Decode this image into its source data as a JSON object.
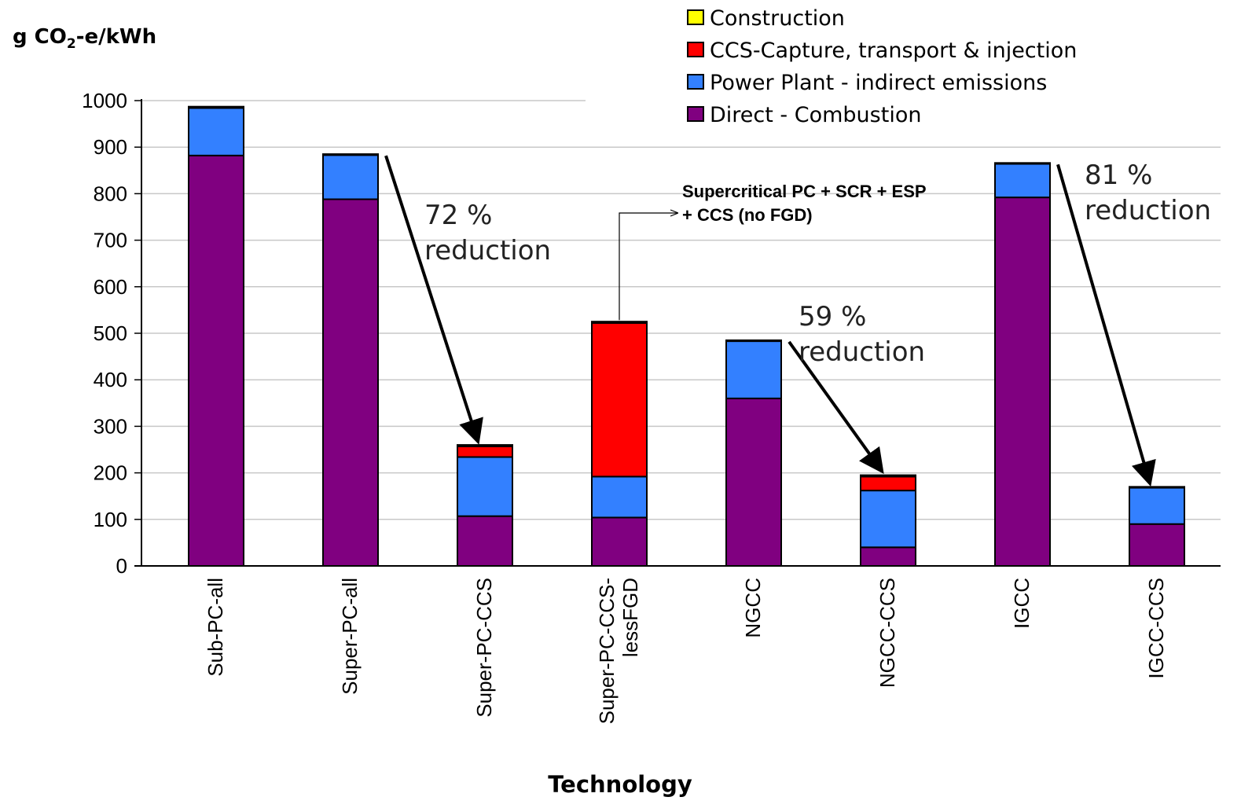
{
  "chart_data": {
    "type": "bar",
    "stacked": true,
    "ylabel_prefix": "g CO",
    "ylabel_sub": "2",
    "ylabel_suffix": "-e/kWh",
    "xlabel": "Technology",
    "ylim": [
      0,
      1000
    ],
    "yticks": [
      "0",
      "100",
      "200",
      "300",
      "400",
      "500",
      "600",
      "700",
      "800",
      "900",
      "1000"
    ],
    "grid": "horizontal",
    "legend_position": "top-right",
    "categories": [
      "Sub-PC-all",
      "Super-PC-all",
      "Super-PC-CCS",
      "Super-PC-CCS-|lessFGD",
      "NGCC",
      "NGCC-CCS",
      "IGCC",
      "IGCC-CCS"
    ],
    "series": [
      {
        "name": "Direct - Combustion",
        "color": "#800080",
        "values": [
          882,
          788,
          107,
          104,
          360,
          40,
          792,
          90
        ]
      },
      {
        "name": "Power Plant - indirect emissions",
        "color": "#3380ff",
        "values": [
          102,
          95,
          127,
          88,
          123,
          122,
          72,
          78
        ]
      },
      {
        "name": "CCS-Capture, transport & injection",
        "color": "#ff0000",
        "values": [
          0,
          0,
          23,
          330,
          0,
          30,
          0,
          0
        ]
      },
      {
        "name": "Construction",
        "color": "#ffff00",
        "values": [
          3,
          2,
          3,
          3,
          2,
          3,
          2,
          2
        ]
      }
    ],
    "legend_order": [
      "Construction",
      "CCS-Capture, transport & injection",
      "Power Plant - indirect emissions",
      "Direct - Combustion"
    ],
    "annotations": [
      {
        "line1": "72 %",
        "line2": "reduction",
        "from": "Super-PC-all",
        "to": "Super-PC-CCS"
      },
      {
        "line1": "59 %",
        "line2": "reduction",
        "from": "NGCC",
        "to": "NGCC-CCS"
      },
      {
        "line1": "81 %",
        "line2": "reduction",
        "from": "IGCC",
        "to": "IGCC-CCS"
      }
    ],
    "callout": {
      "line1": "Supercritical PC + SCR + ESP",
      "line2": "+ CCS (no FGD)",
      "target": "Super-PC-CCS-|lessFGD"
    }
  }
}
